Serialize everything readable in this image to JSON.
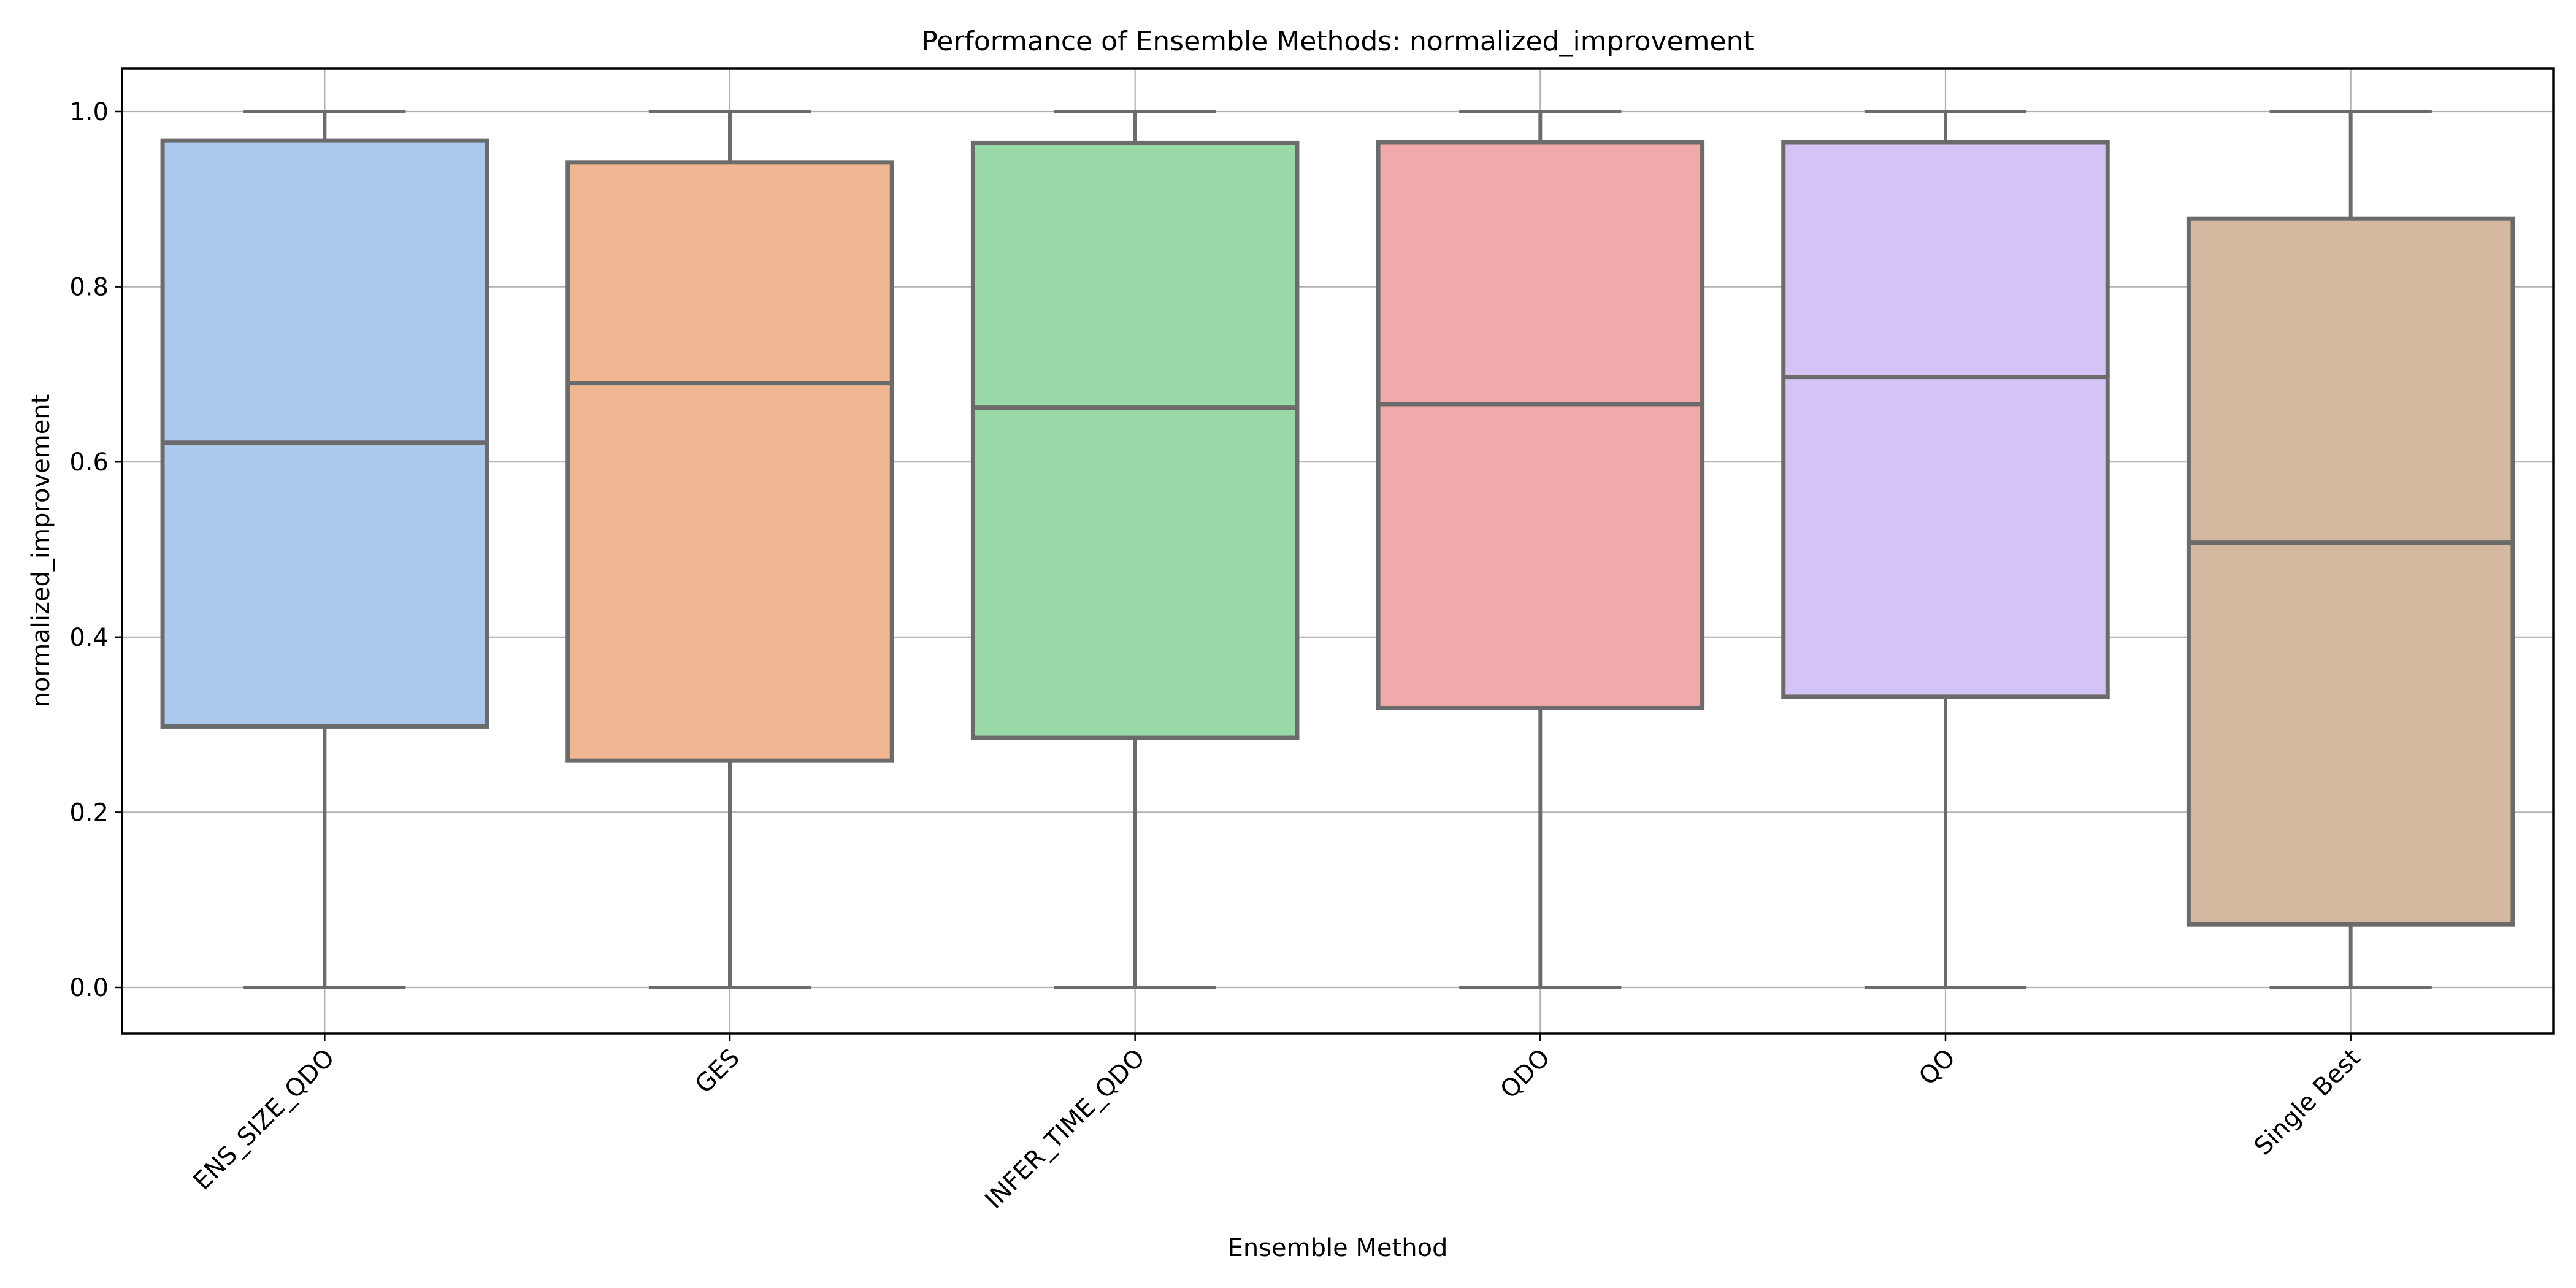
{
  "chart_data": {
    "type": "box",
    "title": "Performance of Ensemble Methods: normalized_improvement",
    "xlabel": "Ensemble Method",
    "ylabel": "normalized_improvement",
    "ylim": [
      -0.05,
      1.05
    ],
    "yticks": [
      "0.0",
      "0.2",
      "0.4",
      "0.6",
      "0.8",
      "1.0"
    ],
    "ytick_values": [
      0.0,
      0.2,
      0.4,
      0.6,
      0.8,
      1.0
    ],
    "grid": true,
    "categories": [
      "ENS_SIZE_QDO",
      "GES",
      "INFER_TIME_QDO",
      "QDO",
      "QO",
      "Single Best"
    ],
    "boxes": [
      {
        "min": 0.0,
        "q1": 0.298,
        "median": 0.622,
        "q3": 0.967,
        "max": 1.0
      },
      {
        "min": 0.0,
        "q1": 0.259,
        "median": 0.69,
        "q3": 0.942,
        "max": 1.0
      },
      {
        "min": 0.0,
        "q1": 0.285,
        "median": 0.662,
        "q3": 0.964,
        "max": 1.0
      },
      {
        "min": 0.0,
        "q1": 0.319,
        "median": 0.666,
        "q3": 0.965,
        "max": 1.0
      },
      {
        "min": 0.0,
        "q1": 0.332,
        "median": 0.697,
        "q3": 0.965,
        "max": 1.0
      },
      {
        "min": 0.0,
        "q1": 0.072,
        "median": 0.508,
        "q3": 0.878,
        "max": 1.0
      }
    ],
    "colors": [
      "#abc9ed",
      "#f0b792",
      "#99d9a8",
      "#f1aaa9",
      "#d4c3f5",
      "#d4b9a0"
    ],
    "line_color": "#6b6b6b"
  }
}
